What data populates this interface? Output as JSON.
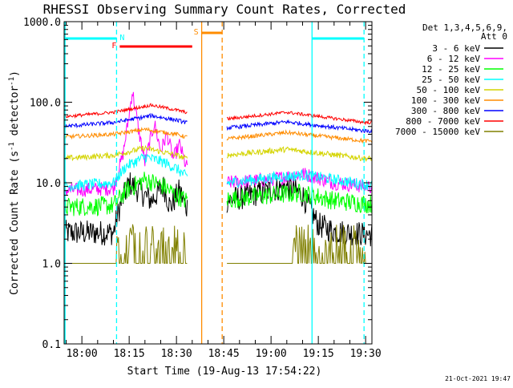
{
  "chart_data": {
    "type": "line",
    "title": "RHESSI Observing Summary Count Rates, Corrected",
    "xlabel": "Start Time (19-Aug-13 17:54:22)",
    "ylabel": "Corrected Count Rate (s⁻¹ detector⁻¹)",
    "ylabel_parts": [
      "Corrected Count Rate (s",
      "-1",
      " detector",
      "-1",
      ")"
    ],
    "y_scale": "log",
    "ylim": [
      0.1,
      1000
    ],
    "xlim": [
      "17:54:22",
      "19:32:00"
    ],
    "yticks": [
      {
        "value": 0.1,
        "label": "0.1"
      },
      {
        "value": 1,
        "label": "1.0"
      },
      {
        "value": 10,
        "label": "10.0"
      },
      {
        "value": 100,
        "label": "100.0"
      },
      {
        "value": 1000,
        "label": "1000.0"
      }
    ],
    "xticks": [
      {
        "time": "18:00",
        "label": "18:00"
      },
      {
        "time": "18:15",
        "label": "18:15"
      },
      {
        "time": "18:30",
        "label": "18:30"
      },
      {
        "time": "18:45",
        "label": "18:45"
      },
      {
        "time": "19:00",
        "label": "19:00"
      },
      {
        "time": "19:15",
        "label": "19:15"
      },
      {
        "time": "19:30",
        "label": "19:30"
      }
    ],
    "grid": false,
    "legend_position": "right",
    "legend_header": [
      "Det 1,3,4,5,6,9,",
      "Att 0"
    ],
    "data_gap": [
      "18:33:30",
      "18:46:00"
    ],
    "series": [
      {
        "name": "3 - 6 keV",
        "color": "#000000",
        "noise": 0.16,
        "x": [
          "17:54",
          "18:10",
          "18:12",
          "18:15",
          "18:18",
          "18:22",
          "18:26",
          "18:28",
          "18:31",
          "18:33",
          "18:46",
          "19:05",
          "19:10",
          "19:15",
          "19:20",
          "19:30"
        ],
        "y": [
          2.4,
          2.4,
          5,
          10,
          8,
          6,
          9,
          5,
          8,
          5,
          6,
          9,
          7,
          3,
          2.5,
          2.3
        ]
      },
      {
        "name": "6 - 12 keV",
        "color": "#ff00ff",
        "noise": 0.09,
        "x": [
          "17:54",
          "18:10",
          "18:13",
          "18:15",
          "18:16",
          "18:18",
          "18:20",
          "18:23",
          "18:25",
          "18:27",
          "18:29",
          "18:31",
          "18:33",
          "18:46",
          "19:00",
          "19:10",
          "19:20",
          "19:30"
        ],
        "y": [
          8,
          8.5,
          22,
          70,
          140,
          45,
          18,
          55,
          25,
          40,
          20,
          30,
          16,
          10,
          11,
          13,
          10,
          9
        ]
      },
      {
        "name": "12 - 25 keV",
        "color": "#00ff00",
        "noise": 0.12,
        "x": [
          "17:54",
          "18:10",
          "18:14",
          "18:20",
          "18:26",
          "18:30",
          "18:33",
          "18:46",
          "19:00",
          "19:10",
          "19:20",
          "19:30"
        ],
        "y": [
          5,
          5.2,
          8,
          11,
          9,
          7,
          6,
          6.2,
          7,
          7.5,
          6,
          5.5
        ]
      },
      {
        "name": "25 - 50 keV",
        "color": "#00ffff",
        "noise": 0.07,
        "x": [
          "17:54",
          "18:10",
          "18:14",
          "18:20",
          "18:26",
          "18:30",
          "18:33",
          "18:46",
          "19:00",
          "19:10",
          "19:20",
          "19:30"
        ],
        "y": [
          9,
          10,
          16,
          21,
          18,
          15,
          12,
          10,
          11.5,
          12.5,
          11,
          9.5
        ]
      },
      {
        "name": "50 - 100 keV",
        "color": "#d4d400",
        "noise": 0.035,
        "x": [
          "17:54",
          "18:10",
          "18:20",
          "18:30",
          "18:33",
          "18:46",
          "19:05",
          "19:30"
        ],
        "y": [
          20,
          22,
          27,
          22,
          20,
          22,
          26,
          20
        ]
      },
      {
        "name": "100 - 300 keV",
        "color": "#ff8c00",
        "noise": 0.025,
        "x": [
          "17:54",
          "18:10",
          "18:20",
          "18:30",
          "18:33",
          "18:46",
          "19:05",
          "19:30"
        ],
        "y": [
          37,
          40,
          46,
          40,
          37,
          35,
          42,
          33
        ]
      },
      {
        "name": "300 - 800 keV",
        "color": "#0000ff",
        "noise": 0.025,
        "x": [
          "17:54",
          "18:10",
          "18:22",
          "18:30",
          "18:33",
          "18:46",
          "19:05",
          "19:30"
        ],
        "y": [
          50,
          56,
          68,
          60,
          56,
          48,
          57,
          44
        ]
      },
      {
        "name": "800 - 7000 keV",
        "color": "#ff0000",
        "noise": 0.02,
        "x": [
          "17:54",
          "18:10",
          "18:22",
          "18:30",
          "18:33",
          "18:46",
          "19:05",
          "19:30"
        ],
        "y": [
          66,
          75,
          92,
          80,
          75,
          62,
          75,
          56
        ]
      },
      {
        "name": "7000 - 15000 keV",
        "color": "#808000",
        "noise": 0,
        "x": [
          "17:54",
          "18:33",
          "18:46",
          "19:30"
        ],
        "y": [
          1,
          1,
          1,
          1
        ]
      }
    ],
    "vertical_lines": [
      {
        "time": "17:54:40",
        "color": "#00ffff",
        "style": "solid"
      },
      {
        "time": "18:11:00",
        "color": "#00ffff",
        "style": "dashed"
      },
      {
        "time": "18:38:00",
        "color": "#ff8c00",
        "style": "solid"
      },
      {
        "time": "18:44:30",
        "color": "#ff8c00",
        "style": "dashed"
      },
      {
        "time": "19:13:00",
        "color": "#00ffff",
        "style": "solid"
      },
      {
        "time": "19:29:30",
        "color": "#00ffff",
        "style": "dashed"
      }
    ],
    "flag_bars": [
      {
        "label": "",
        "color": "#00ffff",
        "start": "17:54:22",
        "end": "18:11:00",
        "level": 0
      },
      {
        "label": "N",
        "color": "#00ffff",
        "start": "18:11:00",
        "end": "18:11:00",
        "level": 0
      },
      {
        "label": "F",
        "color": "#ff0000",
        "start": "18:12:00",
        "end": "18:35:00",
        "level": 2
      },
      {
        "label": "S",
        "color": "#ff8c00",
        "start": "18:38:00",
        "end": "18:44:30",
        "level": 1
      },
      {
        "label": "",
        "color": "#00ffff",
        "start": "19:13:00",
        "end": "19:29:30",
        "level": 0
      }
    ],
    "footer_date": "21-Oct-2021 19:47"
  }
}
